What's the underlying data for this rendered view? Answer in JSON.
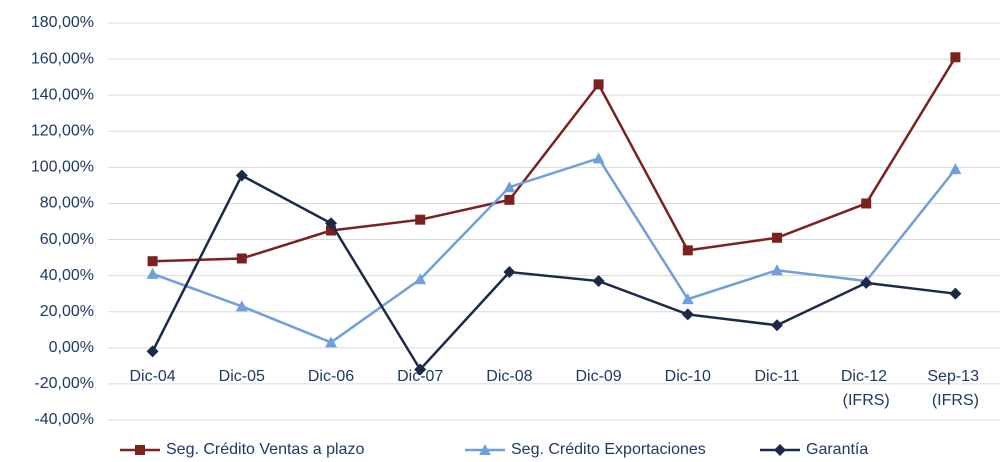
{
  "chart_data": {
    "type": "line",
    "categories": [
      "Dic-04",
      "Dic-05",
      "Dic-06",
      "Dic-07",
      "Dic-08",
      "Dic-09",
      "Dic-10",
      "Dic-11",
      "Dic-12 (IFRS)",
      "Sep-13 (IFRS)"
    ],
    "series": [
      {
        "name": "Seg. Crédito Ventas a plazo",
        "color": "#7b2220",
        "marker": "square",
        "values": [
          48,
          49.5,
          65,
          71,
          82,
          146,
          54,
          61,
          80,
          161
        ]
      },
      {
        "name": "Seg. Crédito Exportaciones",
        "color": "#6fa0dc",
        "marker": "triangle",
        "values": [
          41,
          23,
          3,
          38,
          89,
          105,
          27,
          43,
          37,
          99
        ]
      },
      {
        "name": "Garantía",
        "color": "#1c2a4a",
        "marker": "diamond",
        "values": [
          -2,
          95.5,
          69,
          -12,
          42,
          37,
          18.5,
          12.5,
          36,
          30
        ]
      }
    ],
    "ylim": [
      -40,
      180
    ],
    "yticks": [
      {
        "value": -40,
        "label": "-40,00%"
      },
      {
        "value": -20,
        "label": "-20,00%"
      },
      {
        "value": 0,
        "label": "0,00%"
      },
      {
        "value": 20,
        "label": "20,00%"
      },
      {
        "value": 40,
        "label": "40,00%"
      },
      {
        "value": 60,
        "label": "60,00%"
      },
      {
        "value": 80,
        "label": "80,00%"
      },
      {
        "value": 100,
        "label": "100,00%"
      },
      {
        "value": 120,
        "label": "120,00%"
      },
      {
        "value": 140,
        "label": "140,00%"
      },
      {
        "value": 160,
        "label": "160,00%"
      },
      {
        "value": 180,
        "label": "180,00%"
      }
    ],
    "grid": true,
    "legend": "bottom"
  }
}
